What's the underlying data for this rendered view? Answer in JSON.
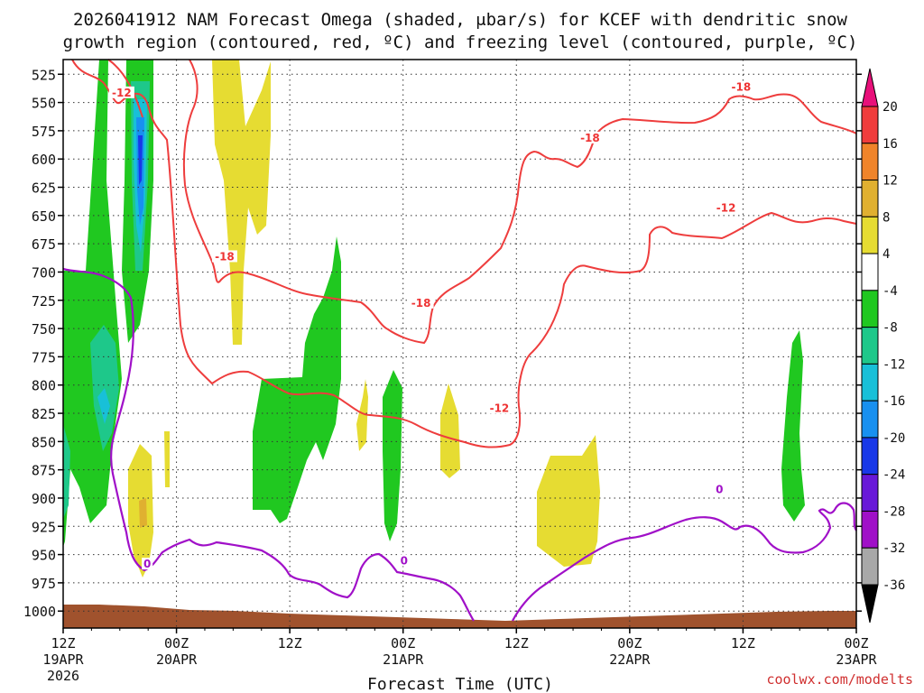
{
  "chart_data": {
    "type": "contour",
    "title_line1": "2026041912 NAM Forecast Omega (shaded, μbar/s) for KCEF with dendritic snow",
    "title_line2": "growth region (contoured, red, ºC) and freezing level (contoured, purple, ºC)",
    "xlabel": "Forecast Time (UTC)",
    "credit": "coolwx.com/modelts",
    "x_range_hours": [
      0,
      84
    ],
    "y_levels": [
      525,
      550,
      575,
      600,
      625,
      650,
      675,
      700,
      725,
      750,
      775,
      800,
      825,
      850,
      875,
      900,
      925,
      950,
      975,
      1000
    ],
    "y_range": [
      512,
      1015
    ],
    "x_ticks": [
      {
        "h": 0,
        "line1": "12Z",
        "line2": "19APR",
        "line3": "2026"
      },
      {
        "h": 12,
        "line1": "00Z",
        "line2": "20APR",
        "line3": ""
      },
      {
        "h": 24,
        "line1": "12Z",
        "line2": "",
        "line3": ""
      },
      {
        "h": 36,
        "line1": "00Z",
        "line2": "21APR",
        "line3": ""
      },
      {
        "h": 48,
        "line1": "12Z",
        "line2": "",
        "line3": ""
      },
      {
        "h": 60,
        "line1": "00Z",
        "line2": "22APR",
        "line3": ""
      },
      {
        "h": 72,
        "line1": "12Z",
        "line2": "",
        "line3": ""
      },
      {
        "h": 84,
        "line1": "00Z",
        "line2": "23APR",
        "line3": ""
      }
    ],
    "colorbar": [
      {
        "label": "20",
        "color": "#e8107a"
      },
      {
        "label": "16",
        "color": "#f03c3c"
      },
      {
        "label": "12",
        "color": "#f0842a"
      },
      {
        "label": "8",
        "color": "#e0b030"
      },
      {
        "label": "4",
        "color": "#e6dc32"
      },
      {
        "label": "-4",
        "color": "#ffffff"
      },
      {
        "label": "-8",
        "color": "#20c820"
      },
      {
        "label": "-12",
        "color": "#1ec88a"
      },
      {
        "label": "-16",
        "color": "#18c0d8"
      },
      {
        "label": "-20",
        "color": "#1890f0"
      },
      {
        "label": "-24",
        "color": "#1838e8"
      },
      {
        "label": "-28",
        "color": "#6818d8"
      },
      {
        "label": "-32",
        "color": "#a010c8"
      },
      {
        "label": "-36",
        "color": "#a8a8a8"
      }
    ],
    "contour_labels": [
      {
        "text": "-12",
        "h": 6.2,
        "p": 543,
        "color": "#ee3333"
      },
      {
        "text": "-18",
        "h": 17.1,
        "p": 688,
        "color": "#ee3333"
      },
      {
        "text": "-18",
        "h": 37.9,
        "p": 729,
        "color": "#ee3333"
      },
      {
        "text": "-12",
        "h": 46.2,
        "p": 822,
        "color": "#ee3333"
      },
      {
        "text": "-18",
        "h": 55.8,
        "p": 583,
        "color": "#ee3333"
      },
      {
        "text": "-18",
        "h": 71.8,
        "p": 538,
        "color": "#ee3333"
      },
      {
        "text": "-12",
        "h": 70.2,
        "p": 645,
        "color": "#ee3333"
      },
      {
        "text": "0",
        "h": 8.9,
        "p": 960,
        "color": "#a010c8"
      },
      {
        "text": "0",
        "h": 36.1,
        "p": 957,
        "color": "#a010c8"
      },
      {
        "text": "0",
        "h": 69.5,
        "p": 894,
        "color": "#a010c8"
      }
    ]
  }
}
